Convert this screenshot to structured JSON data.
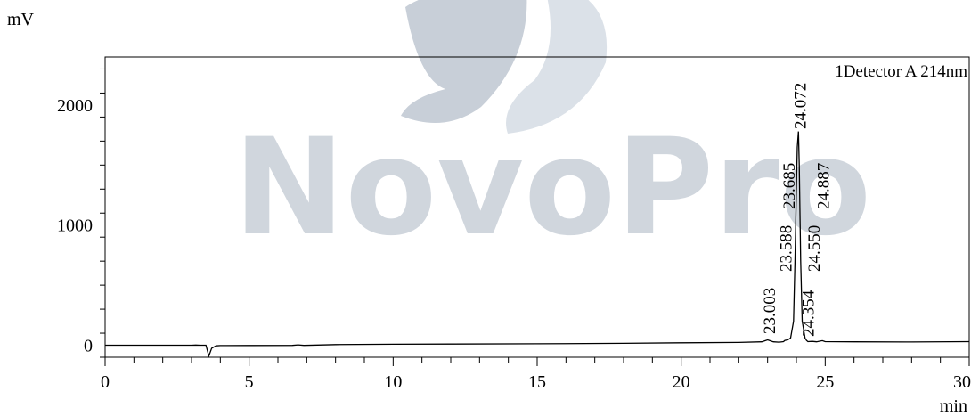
{
  "chart_data": {
    "type": "line",
    "title": "",
    "xlabel": "min",
    "ylabel": "mV",
    "xlim": [
      0,
      30
    ],
    "ylim": [
      -100,
      2400
    ],
    "x_ticks": [
      0,
      5,
      10,
      15,
      20,
      25,
      30
    ],
    "y_ticks": [
      0,
      1000,
      2000
    ],
    "grid": false,
    "legend": {
      "text": "1Detector A 214nm",
      "placement": "top-right"
    },
    "watermark": {
      "text": "NovoPro",
      "colors": [
        "#c8cfd8",
        "#e3e8ee"
      ]
    },
    "series": [
      {
        "color": "#000000",
        "x": [
          0,
          3.0,
          3.15,
          3.3,
          3.5,
          3.6,
          3.7,
          3.85,
          4.0,
          5.0,
          6.5,
          6.7,
          6.9,
          8.0,
          10.0,
          12.0,
          15.0,
          18.0,
          20.0,
          22.0,
          22.8,
          23.0,
          23.2,
          23.4,
          23.55,
          23.6,
          23.7,
          23.8,
          23.9,
          23.95,
          24.0,
          24.03,
          24.07,
          24.1,
          24.15,
          24.2,
          24.3,
          24.35,
          24.4,
          24.55,
          24.7,
          24.9,
          25.0,
          26.0,
          28.0,
          30.0
        ],
        "y": [
          0,
          0,
          2,
          0,
          0,
          -90,
          -25,
          -5,
          -3,
          -2,
          -1,
          3,
          -1,
          5,
          8,
          10,
          12,
          16,
          20,
          23,
          28,
          45,
          28,
          25,
          30,
          40,
          45,
          60,
          200,
          700,
          1300,
          1650,
          1780,
          1500,
          700,
          200,
          60,
          40,
          30,
          32,
          28,
          38,
          30,
          28,
          27,
          30
        ]
      }
    ],
    "peak_labels": [
      {
        "label": "23.003",
        "x": 23.003
      },
      {
        "label": "23.588",
        "x": 23.588
      },
      {
        "label": "23.685",
        "x": 23.685
      },
      {
        "label": "24.072",
        "x": 24.072
      },
      {
        "label": "24.354",
        "x": 24.354
      },
      {
        "label": "24.550",
        "x": 24.55
      },
      {
        "label": "24.887",
        "x": 24.887
      }
    ]
  }
}
